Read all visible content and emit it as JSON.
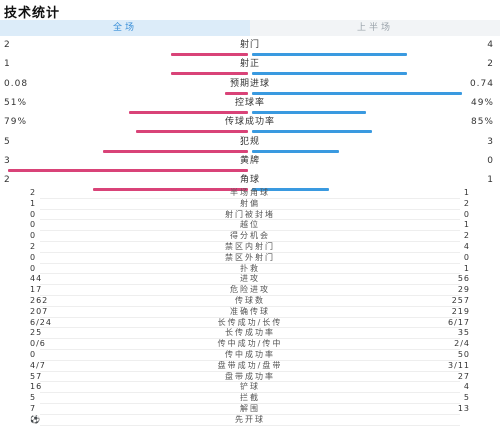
{
  "title": "技术统计",
  "tabs": {
    "full": "全场",
    "half": "上半场"
  },
  "main_stats": [
    {
      "label": "射门",
      "left": "2",
      "right": "4",
      "left_share": 0.333,
      "right_share": 0.667
    },
    {
      "label": "射正",
      "left": "1",
      "right": "2",
      "left_share": 0.333,
      "right_share": 0.667
    },
    {
      "label": "预期进球",
      "left": "0.08",
      "right": "0.74",
      "left_share": 0.098,
      "right_share": 0.902
    },
    {
      "label": "控球率",
      "left": "51%",
      "right": "49%",
      "left_share": 0.51,
      "right_share": 0.49
    },
    {
      "label": "传球成功率",
      "left": "79%",
      "right": "85%",
      "left_share": 0.482,
      "right_share": 0.518
    },
    {
      "label": "犯规",
      "left": "5",
      "right": "3",
      "left_share": 0.625,
      "right_share": 0.375
    },
    {
      "label": "黄牌",
      "left": "3",
      "right": "0",
      "left_share": 1.0,
      "right_share": 0.0
    },
    {
      "label": "角球",
      "left": "2",
      "right": "1",
      "left_share": 0.667,
      "right_share": 0.333
    }
  ],
  "detail_stats": [
    {
      "label": "半场角球",
      "left": "2",
      "right": "1"
    },
    {
      "label": "射偏",
      "left": "1",
      "right": "2"
    },
    {
      "label": "射门被封堵",
      "left": "0",
      "right": "0"
    },
    {
      "label": "越位",
      "left": "0",
      "right": "1"
    },
    {
      "label": "得分机会",
      "left": "0",
      "right": "2"
    },
    {
      "label": "禁区内射门",
      "left": "2",
      "right": "4"
    },
    {
      "label": "禁区外射门",
      "left": "0",
      "right": "0"
    },
    {
      "label": "扑救",
      "left": "0",
      "right": "1"
    },
    {
      "label": "进攻",
      "left": "44",
      "right": "56"
    },
    {
      "label": "危险进攻",
      "left": "17",
      "right": "29"
    },
    {
      "label": "传球数",
      "left": "262",
      "right": "257"
    },
    {
      "label": "准确传球",
      "left": "207",
      "right": "219"
    },
    {
      "label": "长传成功/长传",
      "left": "6/24",
      "right": "6/17"
    },
    {
      "label": "长传成功率",
      "left": "25",
      "right": "35"
    },
    {
      "label": "传中成功/传中",
      "left": "0/6",
      "right": "2/4"
    },
    {
      "label": "传中成功率",
      "left": "0",
      "right": "50"
    },
    {
      "label": "盘带成功/盘带",
      "left": "4/7",
      "right": "3/11"
    },
    {
      "label": "盘带成功率",
      "left": "57",
      "right": "27"
    },
    {
      "label": "铲球",
      "left": "16",
      "right": "4"
    },
    {
      "label": "拦截",
      "left": "5",
      "right": "5"
    },
    {
      "label": "解围",
      "left": "7",
      "right": "13"
    },
    {
      "label": "先开球",
      "left": "⚽",
      "right": ""
    }
  ],
  "colors": {
    "home": "#d94378",
    "away": "#3a9ae0",
    "tab_active": "#3a8fd8"
  }
}
